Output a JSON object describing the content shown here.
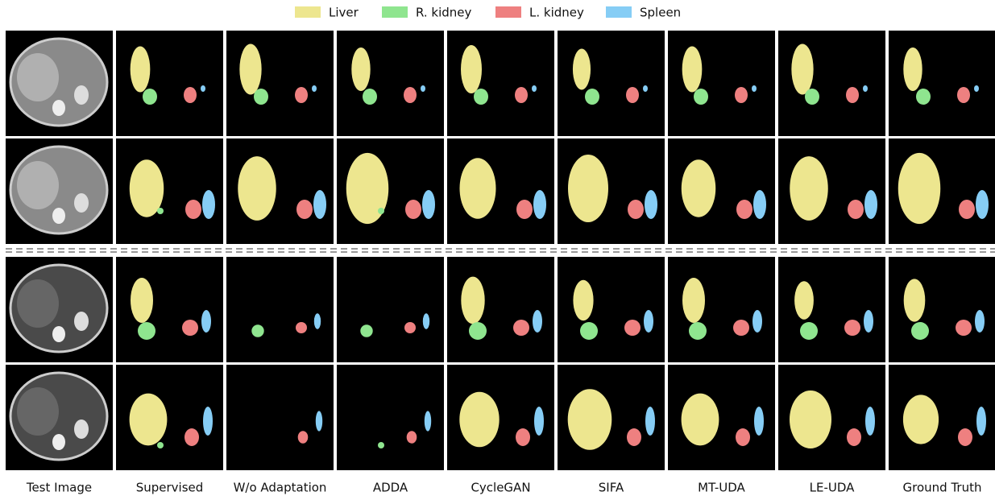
{
  "legend": {
    "items": [
      {
        "label": "Liver",
        "color": "#ede68f"
      },
      {
        "label": "R. kidney",
        "color": "#8fe58f"
      },
      {
        "label": "L. kidney",
        "color": "#ee8080"
      },
      {
        "label": "Spleen",
        "color": "#86cdf5"
      }
    ]
  },
  "columns": [
    "Test Image",
    "Supervised",
    "W/o Adaptation",
    "ADDA",
    "CycleGAN",
    "SIFA",
    "MT-UDA",
    "LE-UDA",
    "Ground Truth"
  ]
}
